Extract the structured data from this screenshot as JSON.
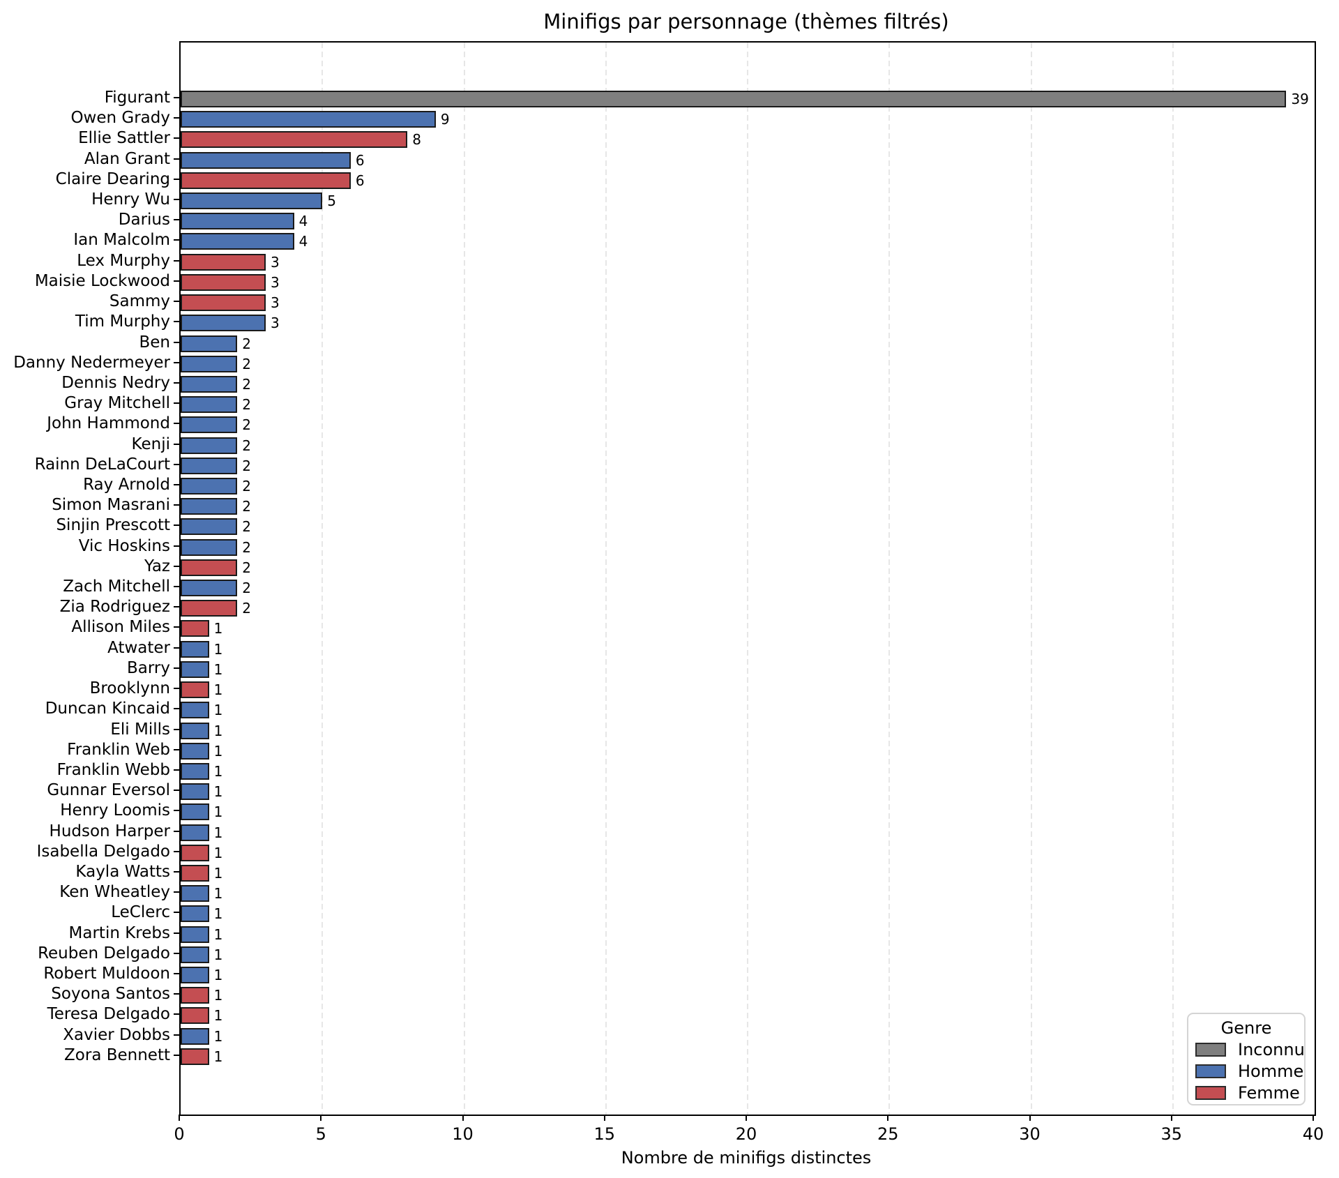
{
  "chart_data": {
    "type": "bar",
    "orientation": "horizontal",
    "title": "Minifigs par personnage (thèmes filtrés)",
    "xlabel": "Nombre de minifigs distinctes",
    "ylabel": "",
    "xlim": [
      0,
      40
    ],
    "xticks": [
      0,
      5,
      10,
      15,
      20,
      25,
      30,
      35,
      40
    ],
    "grid": "vertical-dashed",
    "bar_edge_color": "#1a1a1a",
    "genre_colors": {
      "Inconnu": "#7f7f7f",
      "Homme": "#4c72b0",
      "Femme": "#c44e52"
    },
    "legend": {
      "title": "Genre",
      "position": "lower right",
      "entries": [
        {
          "label": "Inconnu",
          "color": "#7f7f7f"
        },
        {
          "label": "Homme",
          "color": "#4c72b0"
        },
        {
          "label": "Femme",
          "color": "#c44e52"
        }
      ]
    },
    "bars": [
      {
        "label": "Figurant",
        "value": 39,
        "genre": "Inconnu"
      },
      {
        "label": "Owen Grady",
        "value": 9,
        "genre": "Homme"
      },
      {
        "label": "Ellie Sattler",
        "value": 8,
        "genre": "Femme"
      },
      {
        "label": "Alan Grant",
        "value": 6,
        "genre": "Homme"
      },
      {
        "label": "Claire Dearing",
        "value": 6,
        "genre": "Femme"
      },
      {
        "label": "Henry Wu",
        "value": 5,
        "genre": "Homme"
      },
      {
        "label": "Darius",
        "value": 4,
        "genre": "Homme"
      },
      {
        "label": "Ian Malcolm",
        "value": 4,
        "genre": "Homme"
      },
      {
        "label": "Lex Murphy",
        "value": 3,
        "genre": "Femme"
      },
      {
        "label": "Maisie Lockwood",
        "value": 3,
        "genre": "Femme"
      },
      {
        "label": "Sammy",
        "value": 3,
        "genre": "Femme"
      },
      {
        "label": "Tim Murphy",
        "value": 3,
        "genre": "Homme"
      },
      {
        "label": "Ben",
        "value": 2,
        "genre": "Homme"
      },
      {
        "label": "Danny Nedermeyer",
        "value": 2,
        "genre": "Homme"
      },
      {
        "label": "Dennis Nedry",
        "value": 2,
        "genre": "Homme"
      },
      {
        "label": "Gray Mitchell",
        "value": 2,
        "genre": "Homme"
      },
      {
        "label": "John Hammond",
        "value": 2,
        "genre": "Homme"
      },
      {
        "label": "Kenji",
        "value": 2,
        "genre": "Homme"
      },
      {
        "label": "Rainn DeLaCourt",
        "value": 2,
        "genre": "Homme"
      },
      {
        "label": "Ray Arnold",
        "value": 2,
        "genre": "Homme"
      },
      {
        "label": "Simon Masrani",
        "value": 2,
        "genre": "Homme"
      },
      {
        "label": "Sinjin Prescott",
        "value": 2,
        "genre": "Homme"
      },
      {
        "label": "Vic Hoskins",
        "value": 2,
        "genre": "Homme"
      },
      {
        "label": "Yaz",
        "value": 2,
        "genre": "Femme"
      },
      {
        "label": "Zach Mitchell",
        "value": 2,
        "genre": "Homme"
      },
      {
        "label": "Zia Rodriguez",
        "value": 2,
        "genre": "Femme"
      },
      {
        "label": "Allison Miles",
        "value": 1,
        "genre": "Femme"
      },
      {
        "label": "Atwater",
        "value": 1,
        "genre": "Homme"
      },
      {
        "label": "Barry",
        "value": 1,
        "genre": "Homme"
      },
      {
        "label": "Brooklynn",
        "value": 1,
        "genre": "Femme"
      },
      {
        "label": "Duncan Kincaid",
        "value": 1,
        "genre": "Homme"
      },
      {
        "label": "Eli Mills",
        "value": 1,
        "genre": "Homme"
      },
      {
        "label": "Franklin Web",
        "value": 1,
        "genre": "Homme"
      },
      {
        "label": "Franklin Webb",
        "value": 1,
        "genre": "Homme"
      },
      {
        "label": "Gunnar Eversol",
        "value": 1,
        "genre": "Homme"
      },
      {
        "label": "Henry Loomis",
        "value": 1,
        "genre": "Homme"
      },
      {
        "label": "Hudson Harper",
        "value": 1,
        "genre": "Homme"
      },
      {
        "label": "Isabella Delgado",
        "value": 1,
        "genre": "Femme"
      },
      {
        "label": "Kayla Watts",
        "value": 1,
        "genre": "Femme"
      },
      {
        "label": "Ken Wheatley",
        "value": 1,
        "genre": "Homme"
      },
      {
        "label": "LeClerc",
        "value": 1,
        "genre": "Homme"
      },
      {
        "label": "Martin Krebs",
        "value": 1,
        "genre": "Homme"
      },
      {
        "label": "Reuben Delgado",
        "value": 1,
        "genre": "Homme"
      },
      {
        "label": "Robert Muldoon",
        "value": 1,
        "genre": "Homme"
      },
      {
        "label": "Soyona Santos",
        "value": 1,
        "genre": "Femme"
      },
      {
        "label": "Teresa Delgado",
        "value": 1,
        "genre": "Femme"
      },
      {
        "label": "Xavier Dobbs",
        "value": 1,
        "genre": "Homme"
      },
      {
        "label": "Zora Bennett",
        "value": 1,
        "genre": "Femme"
      }
    ]
  }
}
